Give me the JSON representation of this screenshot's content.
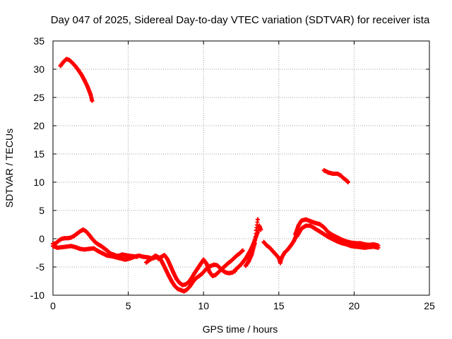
{
  "chart_data": {
    "type": "scatter",
    "title": "Day 047 of 2025, Sidereal Day-to-day VTEC variation (SDTVAR) for receiver ista",
    "xlabel": "GPS time / hours",
    "ylabel": "SDTVAR / TECUs",
    "xlim": [
      0,
      25
    ],
    "ylim": [
      -10,
      35
    ],
    "xticks": [
      "0",
      "5",
      "10",
      "15",
      "20",
      "25"
    ],
    "yticks": [
      "-10",
      "-5",
      "0",
      "5",
      "10",
      "15",
      "20",
      "25",
      "30",
      "35"
    ],
    "grid": true,
    "legend": "none",
    "colors": {
      "series": "#ff0000",
      "grid": "#a0a0a0",
      "axes": "#000000",
      "background": "#ffffff"
    },
    "series": [
      {
        "name": "high arc",
        "points": [
          [
            0.5,
            30.6
          ],
          [
            0.7,
            31.3
          ],
          [
            0.9,
            31.8
          ],
          [
            1.1,
            31.6
          ],
          [
            1.3,
            31.1
          ],
          [
            1.5,
            30.5
          ],
          [
            1.7,
            29.8
          ],
          [
            1.9,
            29.0
          ],
          [
            2.1,
            28.0
          ],
          [
            2.3,
            26.9
          ],
          [
            2.5,
            25.5
          ],
          [
            2.6,
            24.4
          ]
        ]
      },
      {
        "name": "upper band",
        "points": [
          [
            0.0,
            -0.9
          ],
          [
            0.2,
            -0.8
          ],
          [
            0.4,
            -0.3
          ],
          [
            0.6,
            0.0
          ],
          [
            0.8,
            0.1
          ],
          [
            1.0,
            0.1
          ],
          [
            1.2,
            0.2
          ],
          [
            1.4,
            0.5
          ],
          [
            1.6,
            0.9
          ],
          [
            1.8,
            1.3
          ],
          [
            2.0,
            1.6
          ],
          [
            2.2,
            1.3
          ],
          [
            2.4,
            0.7
          ],
          [
            2.6,
            0.0
          ],
          [
            2.8,
            -0.6
          ],
          [
            3.0,
            -1.0
          ],
          [
            3.2,
            -1.3
          ],
          [
            3.4,
            -1.7
          ],
          [
            3.6,
            -2.1
          ],
          [
            3.8,
            -2.6
          ],
          [
            4.0,
            -2.8
          ],
          [
            4.2,
            -3.0
          ],
          [
            4.4,
            -3.0
          ],
          [
            4.6,
            -2.8
          ],
          [
            4.8,
            -2.9
          ],
          [
            5.0,
            -3.0
          ],
          [
            5.3,
            -3.1
          ],
          [
            5.6,
            -3.2
          ]
        ]
      },
      {
        "name": "lower band",
        "points": [
          [
            0.0,
            -1.3
          ],
          [
            0.3,
            -1.6
          ],
          [
            0.6,
            -1.5
          ],
          [
            0.9,
            -1.4
          ],
          [
            1.2,
            -1.3
          ],
          [
            1.5,
            -1.5
          ],
          [
            1.8,
            -1.8
          ],
          [
            2.1,
            -1.9
          ],
          [
            2.4,
            -1.8
          ],
          [
            2.7,
            -1.7
          ],
          [
            3.0,
            -2.2
          ],
          [
            3.3,
            -2.6
          ],
          [
            3.6,
            -3.0
          ],
          [
            3.9,
            -3.1
          ],
          [
            4.2,
            -3.3
          ],
          [
            4.5,
            -3.5
          ],
          [
            4.8,
            -3.7
          ],
          [
            5.1,
            -3.5
          ],
          [
            5.4,
            -3.2
          ],
          [
            5.7,
            -3.0
          ],
          [
            6.0,
            -3.2
          ],
          [
            6.3,
            -3.3
          ],
          [
            6.6,
            -3.5
          ],
          [
            6.9,
            -3.2
          ]
        ]
      },
      {
        "name": "dip group",
        "points": [
          [
            6.2,
            -4.2
          ],
          [
            6.5,
            -3.6
          ],
          [
            6.8,
            -3.0
          ],
          [
            7.1,
            -3.4
          ],
          [
            7.3,
            -4.4
          ],
          [
            7.5,
            -5.5
          ],
          [
            7.7,
            -6.6
          ],
          [
            7.9,
            -7.6
          ],
          [
            8.1,
            -8.4
          ],
          [
            8.3,
            -8.9
          ],
          [
            8.5,
            -9.1
          ],
          [
            8.7,
            -9.3
          ],
          [
            8.9,
            -9.0
          ],
          [
            9.1,
            -8.4
          ],
          [
            9.3,
            -7.6
          ],
          [
            9.5,
            -7.0
          ],
          [
            9.7,
            -6.6
          ],
          [
            9.9,
            -6.2
          ],
          [
            10.1,
            -5.6
          ],
          [
            10.3,
            -5.0
          ],
          [
            10.5,
            -4.8
          ],
          [
            10.7,
            -4.6
          ],
          [
            10.9,
            -4.7
          ],
          [
            11.1,
            -5.2
          ],
          [
            11.3,
            -5.7
          ],
          [
            11.5,
            -6.0
          ],
          [
            11.7,
            -6.1
          ],
          [
            11.9,
            -6.0
          ],
          [
            12.1,
            -5.7
          ]
        ]
      },
      {
        "name": "dip outer",
        "points": [
          [
            7.0,
            -3.6
          ],
          [
            7.2,
            -3.2
          ],
          [
            7.4,
            -2.9
          ],
          [
            7.6,
            -3.6
          ],
          [
            7.8,
            -4.8
          ],
          [
            8.0,
            -6.0
          ],
          [
            8.2,
            -7.1
          ],
          [
            8.4,
            -7.8
          ],
          [
            8.6,
            -8.2
          ],
          [
            8.8,
            -8.1
          ],
          [
            9.0,
            -7.7
          ],
          [
            9.2,
            -7.0
          ],
          [
            9.4,
            -6.1
          ],
          [
            9.6,
            -5.3
          ],
          [
            9.8,
            -4.5
          ],
          [
            10.0,
            -3.7
          ],
          [
            10.2,
            -4.4
          ],
          [
            10.4,
            -5.9
          ],
          [
            10.6,
            -6.6
          ],
          [
            10.8,
            -6.4
          ],
          [
            11.0,
            -5.9
          ],
          [
            11.2,
            -5.4
          ],
          [
            11.4,
            -4.9
          ],
          [
            11.6,
            -4.4
          ],
          [
            11.8,
            -4.0
          ],
          [
            12.0,
            -3.5
          ],
          [
            12.2,
            -3.0
          ],
          [
            12.4,
            -2.6
          ],
          [
            12.6,
            -2.1
          ]
        ]
      },
      {
        "name": "rise to 13.6",
        "points": [
          [
            12.0,
            -5.8
          ],
          [
            12.2,
            -5.3
          ],
          [
            12.4,
            -4.8
          ],
          [
            12.6,
            -4.2
          ],
          [
            12.8,
            -3.5
          ],
          [
            13.0,
            -2.6
          ],
          [
            13.2,
            -1.6
          ],
          [
            13.4,
            -0.3
          ],
          [
            13.6,
            1.2
          ],
          [
            13.7,
            2.3
          ],
          [
            13.8,
            1.6
          ]
        ]
      },
      {
        "name": "short rise",
        "points": [
          [
            12.8,
            -4.8
          ],
          [
            13.0,
            -4.0
          ],
          [
            13.2,
            -2.8
          ],
          [
            13.4,
            -0.8
          ],
          [
            13.5,
            1.5
          ],
          [
            13.6,
            3.4
          ]
        ]
      },
      {
        "name": "post-14 dip",
        "points": [
          [
            14.0,
            -0.6
          ],
          [
            14.2,
            -1.2
          ],
          [
            14.4,
            -1.6
          ],
          [
            14.6,
            -2.2
          ],
          [
            14.8,
            -2.8
          ],
          [
            15.0,
            -3.4
          ],
          [
            15.1,
            -4.3
          ],
          [
            15.2,
            -3.3
          ],
          [
            15.4,
            -2.4
          ],
          [
            15.6,
            -1.9
          ],
          [
            15.8,
            -1.2
          ],
          [
            16.0,
            -0.4
          ],
          [
            16.1,
            0.2
          ],
          [
            16.2,
            1.0
          ]
        ]
      },
      {
        "name": "hump",
        "points": [
          [
            16.1,
            0.8
          ],
          [
            16.3,
            2.3
          ],
          [
            16.5,
            3.2
          ],
          [
            16.8,
            3.4
          ],
          [
            17.1,
            3.1
          ],
          [
            17.4,
            2.8
          ],
          [
            17.7,
            2.6
          ],
          [
            18.0,
            2.0
          ],
          [
            18.3,
            1.1
          ],
          [
            18.6,
            0.6
          ],
          [
            18.9,
            0.2
          ],
          [
            19.2,
            -0.2
          ],
          [
            19.5,
            -0.5
          ],
          [
            19.8,
            -0.7
          ],
          [
            20.1,
            -0.8
          ],
          [
            20.4,
            -0.8
          ],
          [
            20.7,
            -1.0
          ],
          [
            21.0,
            -1.1
          ],
          [
            21.3,
            -1.0
          ],
          [
            21.6,
            -1.2
          ]
        ]
      },
      {
        "name": "hump lower",
        "points": [
          [
            16.2,
            0.4
          ],
          [
            16.5,
            1.8
          ],
          [
            16.8,
            2.3
          ],
          [
            17.1,
            2.3
          ],
          [
            17.4,
            1.8
          ],
          [
            17.7,
            1.3
          ],
          [
            18.0,
            0.8
          ],
          [
            18.3,
            0.3
          ],
          [
            18.6,
            -0.1
          ],
          [
            18.9,
            -0.5
          ],
          [
            19.2,
            -0.8
          ],
          [
            19.5,
            -1.0
          ],
          [
            19.8,
            -1.3
          ],
          [
            20.1,
            -1.4
          ],
          [
            20.4,
            -1.5
          ],
          [
            20.7,
            -1.6
          ],
          [
            21.0,
            -1.5
          ],
          [
            21.3,
            -1.4
          ],
          [
            21.6,
            -1.6
          ]
        ]
      },
      {
        "name": "mid segment",
        "points": [
          [
            18.0,
            12.1
          ],
          [
            18.3,
            11.7
          ],
          [
            18.6,
            11.5
          ],
          [
            18.9,
            11.5
          ],
          [
            19.1,
            11.2
          ],
          [
            19.3,
            10.7
          ],
          [
            19.5,
            10.3
          ],
          [
            19.6,
            10.0
          ]
        ]
      }
    ]
  }
}
